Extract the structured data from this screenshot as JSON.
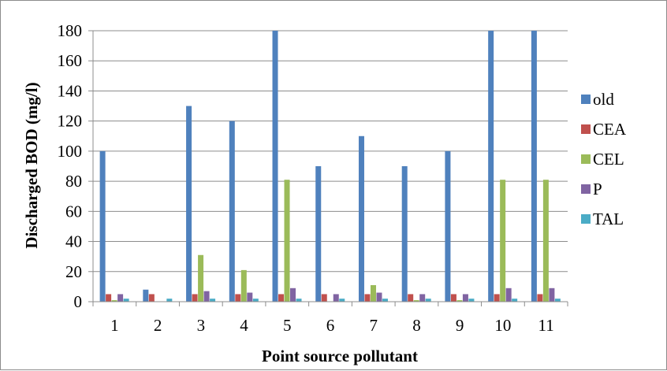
{
  "chart_data": {
    "type": "bar",
    "xlabel": "Point source pollutant",
    "ylabel": "Discharged BOD (mg/l)",
    "categories": [
      "1",
      "2",
      "3",
      "4",
      "5",
      "6",
      "7",
      "8",
      "9",
      "10",
      "11"
    ],
    "ylim": [
      0,
      180
    ],
    "yticks": [
      "0",
      "20",
      "40",
      "60",
      "80",
      "100",
      "120",
      "140",
      "160",
      "180"
    ],
    "grid": true,
    "legend_position": "right",
    "series": [
      {
        "name": "old",
        "color": "#4f81bd",
        "values": [
          100,
          8,
          130,
          120,
          180,
          90,
          110,
          90,
          100,
          180,
          180
        ]
      },
      {
        "name": "CEA",
        "color": "#c0504d",
        "values": [
          5,
          5,
          5,
          5,
          5,
          5,
          5,
          5,
          5,
          5,
          5
        ]
      },
      {
        "name": "CEL",
        "color": "#9bbb59",
        "values": [
          1,
          0,
          31,
          21,
          81,
          0,
          11,
          1,
          1,
          81,
          81
        ]
      },
      {
        "name": "P",
        "color": "#8064a2",
        "values": [
          5,
          0,
          7,
          6,
          9,
          5,
          6,
          5,
          5,
          9,
          9
        ]
      },
      {
        "name": "TAL",
        "color": "#4bacc6",
        "values": [
          2,
          2,
          2,
          2,
          2,
          2,
          2,
          2,
          2,
          2,
          2
        ]
      }
    ]
  }
}
